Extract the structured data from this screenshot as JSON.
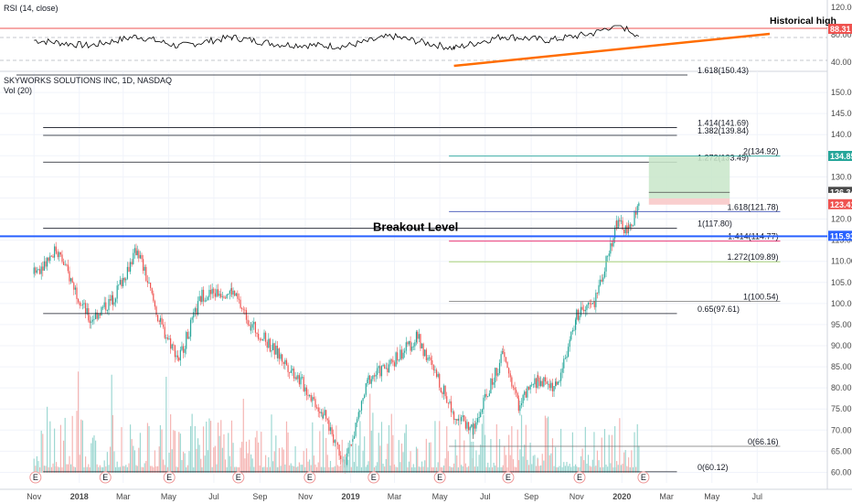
{
  "chart_data": {
    "type": "candlestick",
    "symbol_title": "SKYWORKS SOLUTIONS INC, 1D, NASDAQ",
    "volume_label": "Vol (20)",
    "rsi_label": "RSI (14, close)",
    "annotations": {
      "historical_high": "Historical high",
      "breakout_level": "Breakout Level",
      "cut_label": "1.618(150.43)"
    },
    "x_ticks": [
      "Nov",
      "2018",
      "Mar",
      "May",
      "Jul",
      "Sep",
      "Nov",
      "2019",
      "Mar",
      "May",
      "Jul",
      "Sep",
      "Nov",
      "2020",
      "Mar",
      "May",
      "Jul"
    ],
    "price_ticks": [
      150,
      145,
      140,
      135,
      130,
      125,
      120,
      115,
      110,
      105,
      100,
      95,
      90,
      85,
      80,
      75,
      70,
      65,
      60
    ],
    "rsi_ticks": [
      120,
      80,
      40
    ],
    "price_ylim": [
      57.5,
      155
    ],
    "price_anchors": [
      {
        "date": "2017-11-01",
        "price": 107
      },
      {
        "date": "2017-12-01",
        "price": 113
      },
      {
        "date": "2018-01-15",
        "price": 96
      },
      {
        "date": "2018-02-15",
        "price": 101
      },
      {
        "date": "2018-03-20",
        "price": 113
      },
      {
        "date": "2018-04-20",
        "price": 95
      },
      {
        "date": "2018-05-15",
        "price": 87
      },
      {
        "date": "2018-06-15",
        "price": 102
      },
      {
        "date": "2018-07-25",
        "price": 103
      },
      {
        "date": "2018-08-20",
        "price": 95
      },
      {
        "date": "2018-09-25",
        "price": 88
      },
      {
        "date": "2018-10-20",
        "price": 83
      },
      {
        "date": "2018-11-25",
        "price": 74
      },
      {
        "date": "2018-12-25",
        "price": 62
      },
      {
        "date": "2019-01-25",
        "price": 82
      },
      {
        "date": "2019-02-25",
        "price": 86
      },
      {
        "date": "2019-04-01",
        "price": 92
      },
      {
        "date": "2019-05-20",
        "price": 74
      },
      {
        "date": "2019-06-15",
        "price": 70
      },
      {
        "date": "2019-07-25",
        "price": 88
      },
      {
        "date": "2019-08-15",
        "price": 76
      },
      {
        "date": "2019-09-10",
        "price": 82
      },
      {
        "date": "2019-10-05",
        "price": 80
      },
      {
        "date": "2019-11-01",
        "price": 97
      },
      {
        "date": "2019-11-25",
        "price": 100
      },
      {
        "date": "2019-12-25",
        "price": 119
      },
      {
        "date": "2020-01-10",
        "price": 117
      },
      {
        "date": "2020-01-24",
        "price": 124
      }
    ],
    "rsi_anchors": [
      {
        "date": "2017-11-01",
        "value": 52
      },
      {
        "date": "2018-01-15",
        "value": 41
      },
      {
        "date": "2018-03-20",
        "value": 60
      },
      {
        "date": "2018-05-15",
        "value": 40
      },
      {
        "date": "2018-07-25",
        "value": 58
      },
      {
        "date": "2018-09-25",
        "value": 44
      },
      {
        "date": "2018-12-25",
        "value": 40
      },
      {
        "date": "2019-02-25",
        "value": 60
      },
      {
        "date": "2019-05-20",
        "value": 36
      },
      {
        "date": "2019-07-25",
        "value": 60
      },
      {
        "date": "2019-09-25",
        "value": 52
      },
      {
        "date": "2019-11-25",
        "value": 66
      },
      {
        "date": "2019-12-25",
        "value": 84
      },
      {
        "date": "2020-01-24",
        "value": 62
      }
    ],
    "horizontal_levels": [
      {
        "price": 141.69,
        "label": "1.414(141.69)",
        "color": "#131722",
        "start": "2017-11-01",
        "end": "2020-03-15"
      },
      {
        "price": 139.84,
        "label": "1.382(139.84)",
        "color": "#131722",
        "start": "2017-11-01",
        "end": "2020-03-15"
      },
      {
        "price": 133.49,
        "label": "1.272(133.49)",
        "color": "#131722",
        "start": "2017-11-01",
        "end": "2020-03-15"
      },
      {
        "price": 117.8,
        "label": "1(117.80)",
        "color": "#131722",
        "start": "2017-11-01",
        "end": "2020-03-15"
      },
      {
        "price": 97.61,
        "label": "0.65(97.61)",
        "color": "#131722",
        "start": "2017-11-01",
        "end": "2020-03-15"
      },
      {
        "price": 60.12,
        "label": "0(60.12)",
        "color": "#131722",
        "start": "2017-11-01",
        "end": "2020-03-15"
      },
      {
        "price": 134.92,
        "label": "2(134.92)",
        "color": "#26a69a",
        "start": "2019-05-01",
        "end": "2020-08-01"
      },
      {
        "price": 121.78,
        "label": "1.618(121.78)",
        "color": "#3f51b5",
        "start": "2019-05-01",
        "end": "2020-08-01"
      },
      {
        "price": 114.77,
        "label": "1.414(114.77)",
        "color": "#e91e63",
        "start": "2019-05-01",
        "end": "2020-08-01"
      },
      {
        "price": 109.89,
        "label": "1.272(109.89)",
        "color": "#9ccc65",
        "start": "2019-05-01",
        "end": "2020-08-01"
      },
      {
        "price": 100.54,
        "label": "1(100.54)",
        "color": "#757575",
        "start": "2019-05-01",
        "end": "2020-08-01"
      },
      {
        "price": 66.16,
        "label": "0(66.16)",
        "color": "#757575",
        "start": "2019-05-01",
        "end": "2020-08-01"
      }
    ],
    "breakout_line": {
      "price": 115.93,
      "color": "#2962ff"
    },
    "position": {
      "start": "2020-01-20",
      "end": "2020-05-25",
      "target": 134.85,
      "entry": 124.9,
      "stop": 123.41
    },
    "price_tags": [
      {
        "price": 134.85,
        "text": "134.85",
        "bg": "#26a69a",
        "fg": "#ffffff"
      },
      {
        "price": 126.34,
        "text": "126.34",
        "bg": "#4a4a4a",
        "fg": "#ffffff"
      },
      {
        "price": 124.9,
        "text": "124.90",
        "bg": "#ffffff",
        "fg": "#131722"
      },
      {
        "price": 123.41,
        "text": "123.41",
        "bg": "#ef5350",
        "fg": "#ffffff"
      },
      {
        "price": 115.93,
        "text": "115.93",
        "bg": "#2962ff",
        "fg": "#ffffff"
      }
    ],
    "rsi_tag": {
      "text": "88.31",
      "bg": "#ef5350"
    },
    "earnings_dates": [
      "2017-11-03",
      "2018-02-05",
      "2018-05-02",
      "2018-08-03",
      "2018-11-07",
      "2019-02-01",
      "2019-05-01",
      "2019-08-01",
      "2019-11-05",
      "2020-01-30"
    ],
    "earnings_glyph": "E",
    "colors": {
      "up": "#26a69a",
      "down": "#ef5350",
      "grid": "#f0f3fa",
      "axis_text": "#4a4a4a"
    }
  }
}
